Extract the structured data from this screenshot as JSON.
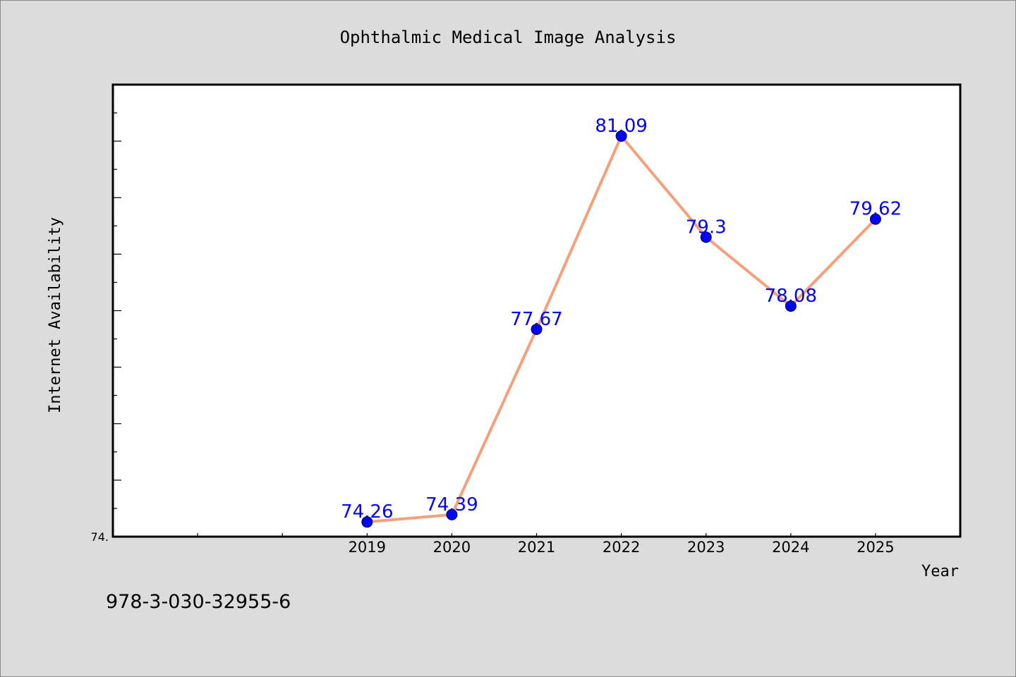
{
  "chart_data": {
    "type": "line",
    "title": "Ophthalmic Medical Image Analysis",
    "xlabel": "Year",
    "ylabel": "Internet Availability",
    "x": [
      "2019",
      "2020",
      "2021",
      "2022",
      "2023",
      "2024",
      "2025"
    ],
    "series": [
      {
        "values": [
          74.26,
          74.39,
          77.67,
          81.09,
          79.3,
          78.08,
          79.62
        ],
        "labels": [
          "74.26",
          "74.39",
          "77.67",
          "81.09",
          "79.3",
          "78.08",
          "79.62"
        ]
      }
    ],
    "x_axis_slots": 10,
    "x_first_label_slot": 4,
    "ylim": [
      74,
      82
    ],
    "y_minor_tick_step": 0.5,
    "y_tick_labels": [
      "74."
    ],
    "grid": false,
    "legend": "none",
    "colors": {
      "line": "#f4a07a",
      "marker": "#0000ff",
      "data_label": "#0000ff",
      "plot_background": "#ffffff",
      "page_background": "#dcdcdc"
    }
  },
  "footer": {
    "isbn": "978-3-030-32955-6"
  }
}
